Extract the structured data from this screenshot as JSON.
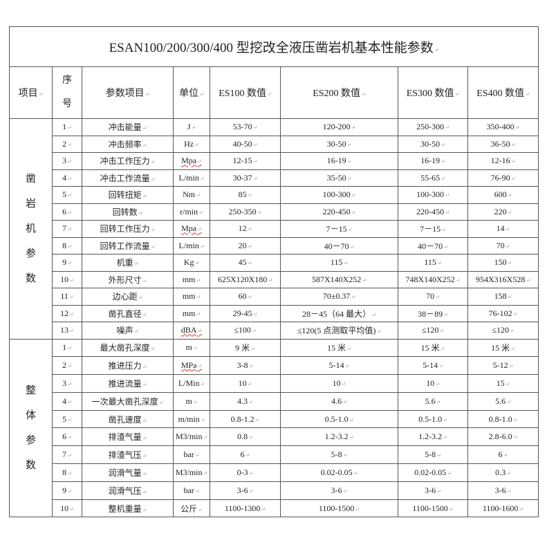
{
  "title": "ESAN100/200/300/400 型挖改全液压凿岩机基本性能参数",
  "headers": {
    "category": "项目",
    "index_line1": "序",
    "index_line2": "号",
    "param": "参数项目",
    "unit": "单位",
    "es100": "ES100 数值",
    "es200": "ES200 数值",
    "es300": "ES300 数值",
    "es400": "ES400 数值"
  },
  "sections": [
    {
      "label_chars": [
        "凿",
        "岩",
        "机",
        "参",
        "数"
      ],
      "rows": [
        {
          "no": "1",
          "param": "冲击能量",
          "unit": "J",
          "es100": "53-70",
          "es200": "120-200",
          "es300": "250-300",
          "es400": "350-400"
        },
        {
          "no": "2",
          "param": "冲击频率",
          "unit": "Hz",
          "es100": "40-50",
          "es200": "30-50",
          "es300": "30-50",
          "es400": "36-50"
        },
        {
          "no": "3",
          "param": "冲击工作压力",
          "unit": "Mpa",
          "es100": "12-15",
          "es200": "16-19",
          "es300": "16-19",
          "es400": "12-16"
        },
        {
          "no": "4",
          "param": "冲击工作流量",
          "unit": "L/min",
          "es100": "30-37",
          "es200": "35-50",
          "es300": "55-65",
          "es400": "76-90"
        },
        {
          "no": "5",
          "param": "回转扭矩",
          "unit": "Nm",
          "es100": "85",
          "es200": "100-300",
          "es300": "100-300",
          "es400": "600"
        },
        {
          "no": "6",
          "param": "回转数",
          "unit": "r/min",
          "es100": "250-350",
          "es200": "220-450",
          "es300": "220-450",
          "es400": "220"
        },
        {
          "no": "7",
          "param": "回转工作压力",
          "unit": "Mpa",
          "es100": "12",
          "es200": "7－15",
          "es300": "7－15",
          "es400": "14"
        },
        {
          "no": "8",
          "param": "回转工作流量",
          "unit": "L/min",
          "es100": "20",
          "es200": "40－70",
          "es300": "40－70",
          "es400": "70"
        },
        {
          "no": "9",
          "param": "机重",
          "unit": "Kg",
          "es100": "45",
          "es200": "115",
          "es300": "115",
          "es400": "150"
        },
        {
          "no": "10",
          "param": "外形尺寸",
          "unit": "mm",
          "es100": "625X120X180",
          "es200": "587X140X252",
          "es300": "748X140X252",
          "es400": "954X316X528"
        },
        {
          "no": "11",
          "param": "边心距",
          "unit": "mm",
          "es100": "60",
          "es200": "70±0.37",
          "es300": "70",
          "es400": "158"
        },
        {
          "no": "12",
          "param": "凿孔直径",
          "unit": "mm",
          "es100": "29-45",
          "es200": "28－45（64 最大）",
          "es300": "38－89",
          "es400": "76-102"
        },
        {
          "no": "13",
          "param": "噪声",
          "unit": "dBA",
          "es100": "≤100",
          "es200": "≤120(5 点测取平均值)",
          "es300": "≤120",
          "es400": "≤120"
        }
      ]
    },
    {
      "label_chars": [
        "整",
        "体",
        "参",
        "数"
      ],
      "rows": [
        {
          "no": "1",
          "param": "最大凿孔深度",
          "unit": "m",
          "es100": "9 米",
          "es200": "15 米",
          "es300": "15 米",
          "es400": "15 米"
        },
        {
          "no": "2",
          "param": "推进压力",
          "unit": "MPa",
          "es100": "3-8",
          "es200": "5-14",
          "es300": "5-14",
          "es400": "5-12"
        },
        {
          "no": "3",
          "param": "推进流量",
          "unit": "L/Min",
          "es100": "10",
          "es200": "10",
          "es300": "10",
          "es400": "15"
        },
        {
          "no": "4",
          "param": "一次最大凿孔深度",
          "unit": "m",
          "es100": "4.3",
          "es200": "4.6",
          "es300": "5.6",
          "es400": "5.6"
        },
        {
          "no": "5",
          "param": "凿孔速度",
          "unit": "m/min",
          "es100": "0.8-1.2",
          "es200": "0.5-1.0",
          "es300": "0.5-1.0",
          "es400": "0.8-1.0"
        },
        {
          "no": "6",
          "param": "排渣气量",
          "unit": "M3/min",
          "es100": "0.8",
          "es200": "1.2-3.2",
          "es300": "1.2-3.2",
          "es400": "2.8-6.0"
        },
        {
          "no": "7",
          "param": "排渣气压",
          "unit": "bar",
          "es100": "6",
          "es200": "5-8",
          "es300": "5-8",
          "es400": "6"
        },
        {
          "no": "8",
          "param": "润滑气量",
          "unit": "M3/min",
          "es100": "0-3",
          "es200": "0.02-0.05",
          "es300": "0.02-0.05",
          "es400": "0.3"
        },
        {
          "no": "9",
          "param": "润滑气压",
          "unit": "bar",
          "es100": "3-6",
          "es200": "3-6",
          "es300": "3-6",
          "es400": "3-6"
        },
        {
          "no": "10",
          "param": "整机重量",
          "unit": "公斤",
          "es100": "1100-1300",
          "es200": "1100-1500",
          "es300": "1100-1500",
          "es400": "1100-1600"
        }
      ]
    }
  ]
}
